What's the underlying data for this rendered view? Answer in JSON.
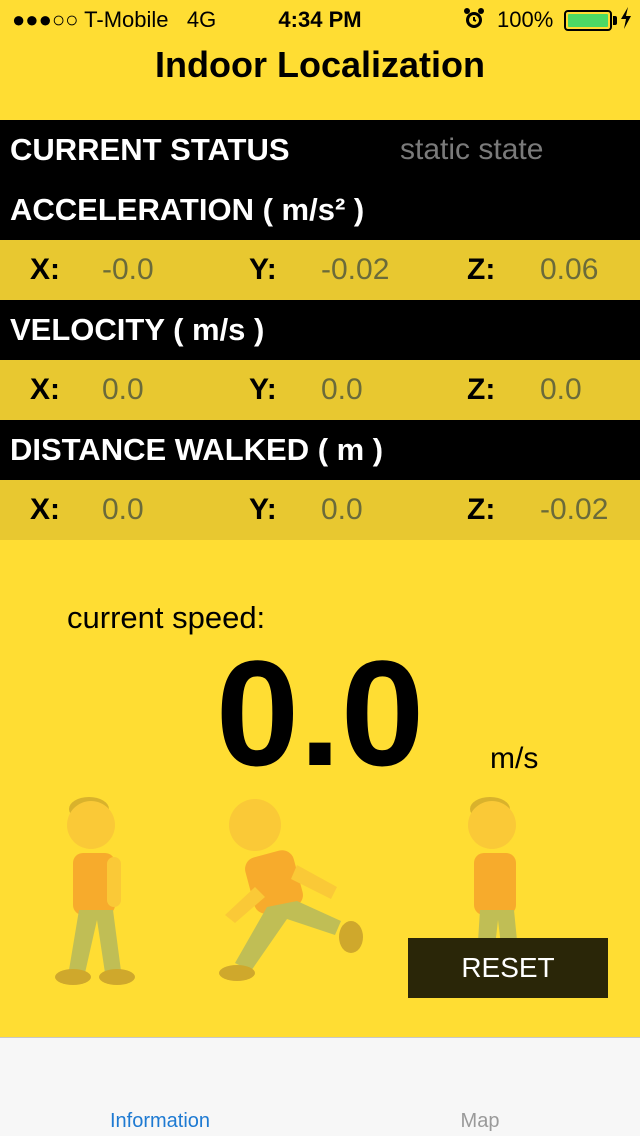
{
  "status_bar": {
    "carrier": "●●●○○ T-Mobile",
    "network": "4G",
    "time": "4:34 PM",
    "battery": "100%",
    "battery_level": 1.0,
    "alarm_icon": "alarm-clock-icon",
    "charging_icon": "lightning-bolt-icon"
  },
  "app": {
    "title": "Indoor Localization"
  },
  "status": {
    "label": "CURRENT STATUS",
    "value": "static state"
  },
  "acceleration": {
    "label": "ACCELERATION ( m/s² )",
    "x_label": "X:",
    "x": "-0.0",
    "y_label": "Y:",
    "y": "-0.02",
    "z_label": "Z:",
    "z": "0.06"
  },
  "velocity": {
    "label": "VELOCITY ( m/s )",
    "x_label": "X:",
    "x": "0.0",
    "y_label": "Y:",
    "y": "0.0",
    "z_label": "Z:",
    "z": "0.0"
  },
  "distance": {
    "label": "DISTANCE WALKED ( m )",
    "x_label": "X:",
    "x": "0.0",
    "y_label": "Y:",
    "y": "0.0",
    "z_label": "Z:",
    "z": "-0.02"
  },
  "speed": {
    "label": "current speed:",
    "value": "0.0",
    "unit": "m/s"
  },
  "figures": [
    "walking-person-icon",
    "running-person-icon",
    "walking-person-icon"
  ],
  "reset_label": "RESET",
  "tabs": [
    {
      "label": "Information",
      "active": true
    },
    {
      "label": "Map",
      "active": false
    }
  ],
  "colors": {
    "background": "#FFDD33",
    "row": "#E8C830",
    "accent": "#1E7AD2"
  }
}
